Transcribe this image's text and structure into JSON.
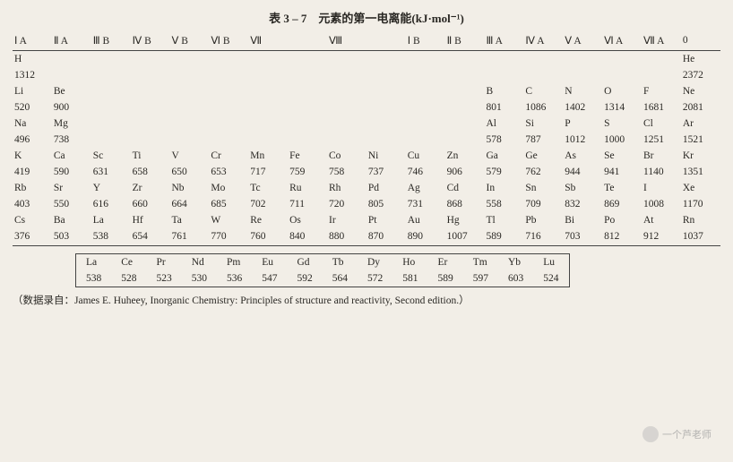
{
  "title": "表 3 – 7　元素的第一电离能(kJ·mol⁻¹)",
  "headers": [
    "Ⅰ A",
    "Ⅱ A",
    "Ⅲ B",
    "Ⅳ B",
    "Ⅴ B",
    "Ⅵ B",
    "Ⅶ",
    "",
    "Ⅷ",
    "",
    "Ⅰ B",
    "Ⅱ B",
    "Ⅲ A",
    "Ⅳ A",
    "Ⅴ A",
    "Ⅵ A",
    "Ⅶ A",
    "0"
  ],
  "rows": [
    [
      "H",
      "",
      "",
      "",
      "",
      "",
      "",
      "",
      "",
      "",
      "",
      "",
      "",
      "",
      "",
      "",
      "",
      "He"
    ],
    [
      "1312",
      "",
      "",
      "",
      "",
      "",
      "",
      "",
      "",
      "",
      "",
      "",
      "",
      "",
      "",
      "",
      "",
      "2372"
    ],
    [
      "Li",
      "Be",
      "",
      "",
      "",
      "",
      "",
      "",
      "",
      "",
      "",
      "",
      "B",
      "C",
      "N",
      "O",
      "F",
      "Ne"
    ],
    [
      "520",
      "900",
      "",
      "",
      "",
      "",
      "",
      "",
      "",
      "",
      "",
      "",
      "801",
      "1086",
      "1402",
      "1314",
      "1681",
      "2081"
    ],
    [
      "Na",
      "Mg",
      "",
      "",
      "",
      "",
      "",
      "",
      "",
      "",
      "",
      "",
      "Al",
      "Si",
      "P",
      "S",
      "Cl",
      "Ar"
    ],
    [
      "496",
      "738",
      "",
      "",
      "",
      "",
      "",
      "",
      "",
      "",
      "",
      "",
      "578",
      "787",
      "1012",
      "1000",
      "1251",
      "1521"
    ],
    [
      "K",
      "Ca",
      "Sc",
      "Ti",
      "V",
      "Cr",
      "Mn",
      "Fe",
      "Co",
      "Ni",
      "Cu",
      "Zn",
      "Ga",
      "Ge",
      "As",
      "Se",
      "Br",
      "Kr"
    ],
    [
      "419",
      "590",
      "631",
      "658",
      "650",
      "653",
      "717",
      "759",
      "758",
      "737",
      "746",
      "906",
      "579",
      "762",
      "944",
      "941",
      "1140",
      "1351"
    ],
    [
      "Rb",
      "Sr",
      "Y",
      "Zr",
      "Nb",
      "Mo",
      "Tc",
      "Ru",
      "Rh",
      "Pd",
      "Ag",
      "Cd",
      "In",
      "Sn",
      "Sb",
      "Te",
      "I",
      "Xe"
    ],
    [
      "403",
      "550",
      "616",
      "660",
      "664",
      "685",
      "702",
      "711",
      "720",
      "805",
      "731",
      "868",
      "558",
      "709",
      "832",
      "869",
      "1008",
      "1170"
    ],
    [
      "Cs",
      "Ba",
      "La",
      "Hf",
      "Ta",
      "W",
      "Re",
      "Os",
      "Ir",
      "Pt",
      "Au",
      "Hg",
      "Tl",
      "Pb",
      "Bi",
      "Po",
      "At",
      "Rn"
    ],
    [
      "376",
      "503",
      "538",
      "654",
      "761",
      "770",
      "760",
      "840",
      "880",
      "870",
      "890",
      "1007",
      "589",
      "716",
      "703",
      "812",
      "912",
      "1037"
    ]
  ],
  "lanthanides": {
    "symbols": [
      "La",
      "Ce",
      "Pr",
      "Nd",
      "Pm",
      "Eu",
      "Gd",
      "Tb",
      "Dy",
      "Ho",
      "Er",
      "Tm",
      "Yb",
      "Lu"
    ],
    "values": [
      "538",
      "528",
      "523",
      "530",
      "536",
      "547",
      "592",
      "564",
      "572",
      "581",
      "589",
      "597",
      "603",
      "524"
    ]
  },
  "source": "（数据录自：James E. Huheey, Inorganic Chemistry: Principles of structure and reactivity, Second edition.）",
  "watermark": "一个芦老师"
}
